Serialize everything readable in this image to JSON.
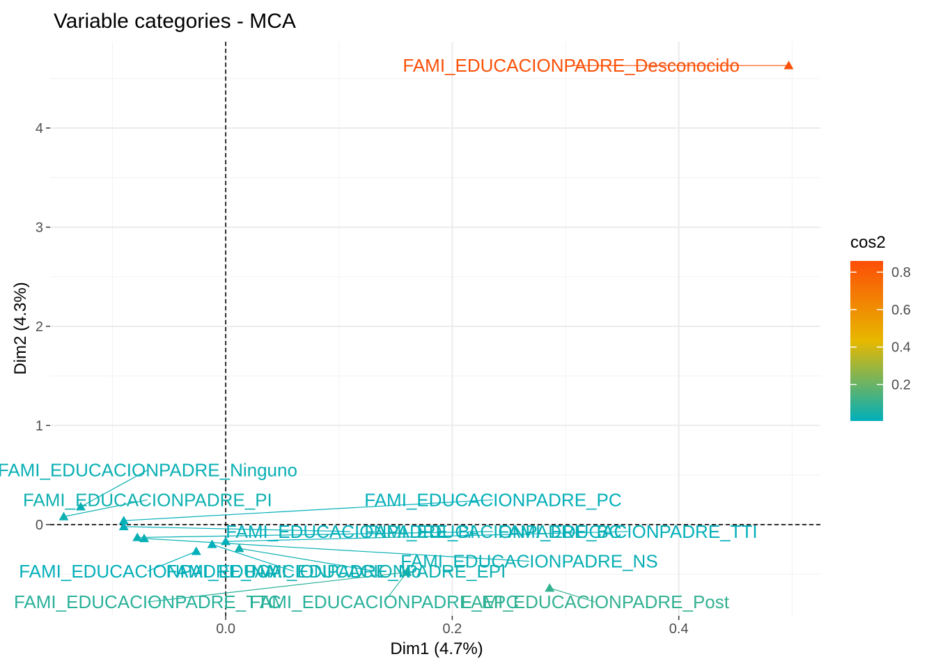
{
  "chart_data": {
    "type": "scatter",
    "title": "Variable categories - MCA",
    "xlabel": "Dim1 (4.7%)",
    "ylabel": "Dim2 (4.3%)",
    "xlim": [
      -0.155,
      0.525
    ],
    "ylim": [
      -0.92,
      4.87
    ],
    "xticks": [
      {
        "value": 0.0,
        "label": "0.0"
      },
      {
        "value": 0.2,
        "label": "0.2"
      },
      {
        "value": 0.4,
        "label": "0.4"
      }
    ],
    "yticks": [
      {
        "value": 0,
        "label": "0"
      },
      {
        "value": 1,
        "label": "1"
      },
      {
        "value": 2,
        "label": "2"
      },
      {
        "value": 3,
        "label": "3"
      },
      {
        "value": 4,
        "label": "4"
      }
    ],
    "grid": true,
    "reference_lines": {
      "x": 0,
      "y": 0
    },
    "legend": {
      "title": "cos2",
      "placement": "right",
      "min": 0.005,
      "max": 0.86,
      "ticks": [
        {
          "value": 0.2,
          "label": "0.2"
        },
        {
          "value": 0.4,
          "label": "0.4"
        },
        {
          "value": 0.6,
          "label": "0.6"
        },
        {
          "value": 0.8,
          "label": "0.8"
        }
      ],
      "colors": [
        "#00AFBB",
        "#E7B800",
        "#FC4E07"
      ]
    },
    "points": [
      {
        "label": "FAMI_EDUCACIONPADRE_Desconocido",
        "x": 0.497,
        "y": 4.63,
        "cos2": 0.85,
        "lx": 0.305,
        "ly": 4.63
      },
      {
        "label": "FAMI_EDUCACIONPADRE_Ninguno",
        "x": -0.128,
        "y": 0.18,
        "cos2": 0.02,
        "lx": -0.069,
        "ly": 0.55
      },
      {
        "label": "FAMI_EDUCACIONPADRE_PI",
        "x": -0.143,
        "y": 0.08,
        "cos2": 0.03,
        "lx": -0.069,
        "ly": 0.25
      },
      {
        "label": "FAMI_EDUCACIONPADRE_PC",
        "x": -0.09,
        "y": 0.04,
        "cos2": 0.01,
        "lx": 0.236,
        "ly": 0.25
      },
      {
        "label": "FAMI_EDUCACIONPADRE_BI",
        "x": -0.09,
        "y": -0.02,
        "cos2": 0.01,
        "lx": 0.11,
        "ly": -0.07
      },
      {
        "label": "FAMI_EDUCACIONPADRE_BC",
        "x": -0.078,
        "y": -0.13,
        "cos2": 0.02,
        "lx": 0.236,
        "ly": -0.07
      },
      {
        "label": "FAMI_EDUCACIONPADRE_TTI",
        "x": 0.0,
        "y": -0.17,
        "cos2": 0.01,
        "lx": 0.355,
        "ly": -0.07
      },
      {
        "label": "FAMI_EDUCACIONPADRE_NS",
        "x": -0.072,
        "y": -0.14,
        "cos2": 0.02,
        "lx": 0.268,
        "ly": -0.37
      },
      {
        "label": "FAMI_EDUCACIONPADRE_NA",
        "x": -0.026,
        "y": -0.27,
        "cos2": 0.01,
        "lx": -0.069,
        "ly": -0.47
      },
      {
        "label": "FAMI_EDUCACIONPADRE_No",
        "x": -0.012,
        "y": -0.2,
        "cos2": 0.01,
        "lx": 0.06,
        "ly": -0.47
      },
      {
        "label": "FAMI_EDUCACIONPADRE_EPI",
        "x": 0.012,
        "y": -0.24,
        "cos2": 0.03,
        "lx": 0.132,
        "ly": -0.47
      },
      {
        "label": "FAMI_EDUCACIONPADRE_TTC",
        "x": 0.16,
        "y": -0.48,
        "cos2": 0.08,
        "lx": -0.069,
        "ly": -0.78
      },
      {
        "label": "FAMI_EDUCACIONPADRE_EPC",
        "x": 0.16,
        "y": -0.48,
        "cos2": 0.08,
        "lx": 0.14,
        "ly": -0.78
      },
      {
        "label": "FAMI_EDUCACIONPADRE_Post",
        "x": 0.286,
        "y": -0.64,
        "cos2": 0.1,
        "lx": 0.326,
        "ly": -0.78
      }
    ]
  }
}
